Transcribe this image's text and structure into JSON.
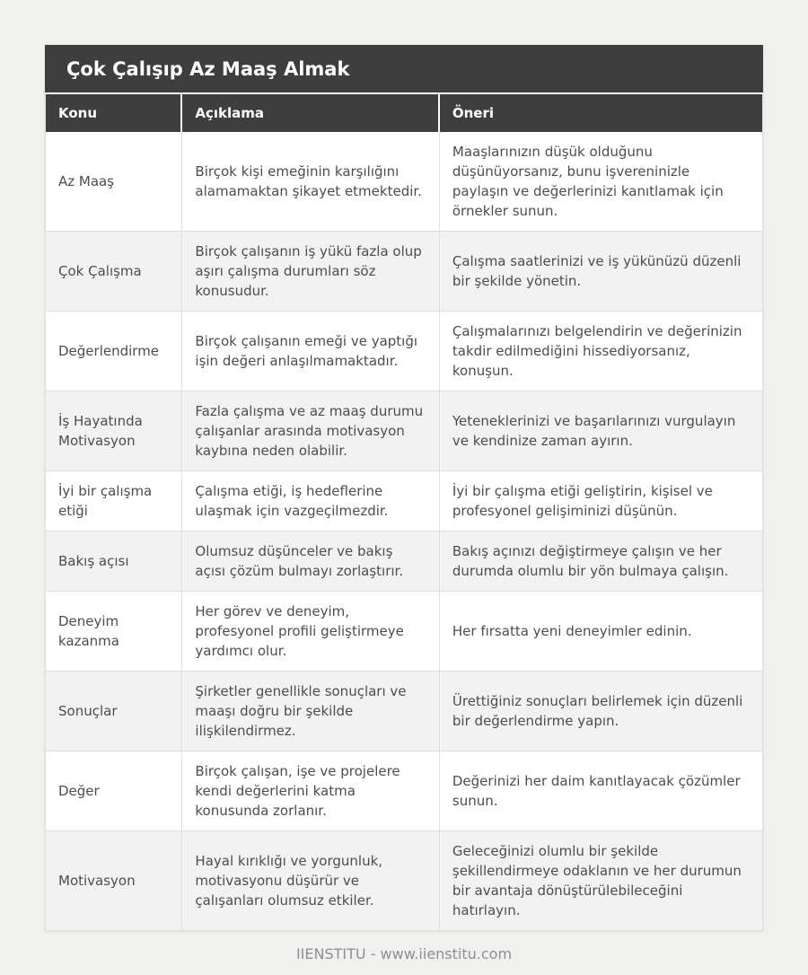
{
  "page": {
    "background_color": "#f0f0ef",
    "footer_text": "IIENSTITU - www.iienstitu.com"
  },
  "table": {
    "title": "Çok Çalışıp Az Maaş Almak",
    "columns": [
      "Konu",
      "Açıklama",
      "Öneri"
    ],
    "colors": {
      "header_bg": "#3e3e3e",
      "header_text": "#ffffff",
      "row_alt_bg": "#f2f2f2",
      "border": "#dfdfdf",
      "cell_text": "#4d4d4d",
      "footer_text": "#8f8f8f"
    },
    "rows": [
      {
        "konu": "Az Maaş",
        "aciklama": "Birçok kişi emeğinin karşılığını alamamaktan şikayet etmektedir.",
        "oneri": "Maaşlarınızın düşük olduğunu düşünüyorsanız, bunu işvereninizle paylaşın ve değerlerinizi kanıtlamak için örnekler sunun."
      },
      {
        "konu": "Çok Çalışma",
        "aciklama": "Birçok çalışanın iş yükü fazla olup aşırı çalışma durumları söz konusudur.",
        "oneri": "Çalışma saatlerinizi ve iş yükünüzü düzenli bir şekilde yönetin."
      },
      {
        "konu": "Değerlendirme",
        "aciklama": "Birçok çalışanın emeği ve yaptığı işin değeri anlaşılmamaktadır.",
        "oneri": "Çalışmalarınızı belgelendirin ve değerinizin takdir edilmediğini hissediyorsanız, konuşun."
      },
      {
        "konu": "İş Hayatında Motivasyon",
        "aciklama": "Fazla çalışma ve az maaş durumu çalışanlar arasında motivasyon kaybına neden olabilir.",
        "oneri": "Yeteneklerinizi ve başarılarınızı vurgulayın ve kendinize zaman ayırın."
      },
      {
        "konu": "İyi bir çalışma etiği",
        "aciklama": "Çalışma etiği, iş hedeflerine ulaşmak için vazgeçilmezdir.",
        "oneri": "İyi bir çalışma etiği geliştirin, kişisel ve profesyonel gelişiminizi düşünün."
      },
      {
        "konu": "Bakış açısı",
        "aciklama": "Olumsuz düşünceler ve bakış açısı çözüm bulmayı zorlaştırır.",
        "oneri": "Bakış açınızı değiştirmeye çalışın ve her durumda olumlu bir yön bulmaya çalışın."
      },
      {
        "konu": "Deneyim kazanma",
        "aciklama": "Her görev ve deneyim, profesyonel profili geliştirmeye yardımcı olur.",
        "oneri": "Her fırsatta yeni deneyimler edinin."
      },
      {
        "konu": "Sonuçlar",
        "aciklama": "Şirketler genellikle sonuçları ve maaşı doğru bir şekilde ilişkilendirmez.",
        "oneri": "Ürettiğiniz sonuçları belirlemek için düzenli bir değerlendirme yapın."
      },
      {
        "konu": "Değer",
        "aciklama": "Birçok çalışan, işe ve projelere kendi değerlerini katma konusunda zorlanır.",
        "oneri": "Değerinizi her daim kanıtlayacak çözümler sunun."
      },
      {
        "konu": "Motivasyon",
        "aciklama": "Hayal kırıklığı ve yorgunluk, motivasyonu düşürür ve çalışanları olumsuz etkiler.",
        "oneri": "Geleceğinizi olumlu bir şekilde şekillendirmeye odaklanın ve her durumun bir avantaja dönüştürülebileceğini hatırlayın."
      }
    ]
  }
}
